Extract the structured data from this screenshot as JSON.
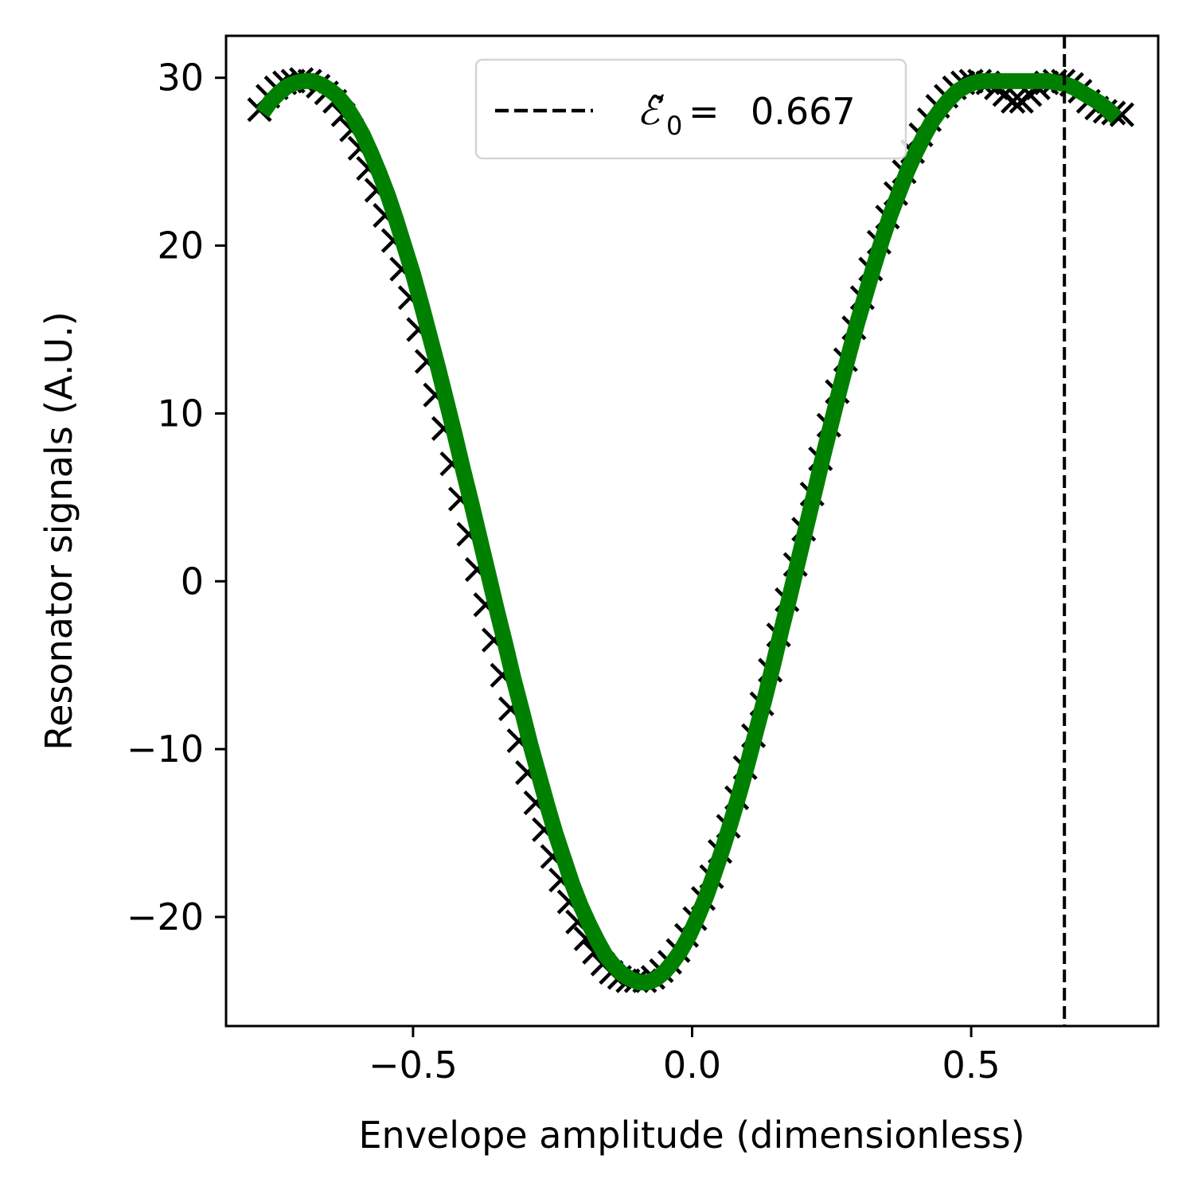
{
  "chart_data": {
    "type": "scatter",
    "xlabel": "Envelope amplitude (dimensionless)",
    "ylabel": "Resonator signals (A.U.)",
    "xlim": [
      -0.835,
      0.835
    ],
    "ylim": [
      -26.5,
      32.5
    ],
    "xticks": [
      -0.5,
      0.0,
      0.5
    ],
    "xtick_labels": [
      "−0.5",
      "0.0",
      "0.5"
    ],
    "yticks": [
      -20,
      -10,
      0,
      10,
      20,
      30
    ],
    "ytick_labels": [
      "−20",
      "−10",
      "0",
      "10",
      "20",
      "30"
    ],
    "grid": false,
    "legend_position": "top-center",
    "vline": {
      "x": 0.667,
      "style": "dashed",
      "color": "#000000"
    },
    "legend": {
      "symbol": "ℰ̃",
      "subscript": "0",
      "equals": "=",
      "value": "0.667"
    },
    "series": [
      {
        "marker": "x",
        "color": "#000000",
        "x": [
          -0.775,
          -0.76,
          -0.745,
          -0.73,
          -0.715,
          -0.7,
          -0.685,
          -0.67,
          -0.655,
          -0.64,
          -0.625,
          -0.61,
          -0.595,
          -0.58,
          -0.565,
          -0.55,
          -0.535,
          -0.52,
          -0.505,
          -0.49,
          -0.475,
          -0.46,
          -0.445,
          -0.43,
          -0.415,
          -0.4,
          -0.385,
          -0.37,
          -0.355,
          -0.34,
          -0.325,
          -0.31,
          -0.295,
          -0.28,
          -0.265,
          -0.25,
          -0.235,
          -0.22,
          -0.205,
          -0.19,
          -0.175,
          -0.16,
          -0.145,
          -0.13,
          -0.115,
          -0.1,
          -0.085,
          -0.07,
          -0.055,
          -0.04,
          -0.025,
          -0.01,
          0.005,
          0.02,
          0.035,
          0.05,
          0.065,
          0.08,
          0.095,
          0.11,
          0.125,
          0.14,
          0.155,
          0.17,
          0.185,
          0.2,
          0.215,
          0.23,
          0.245,
          0.26,
          0.275,
          0.29,
          0.305,
          0.32,
          0.335,
          0.35,
          0.365,
          0.38,
          0.395,
          0.41,
          0.425,
          0.44,
          0.455,
          0.47,
          0.485,
          0.5,
          0.515,
          0.53,
          0.545,
          0.56,
          0.575,
          0.59,
          0.605,
          0.62,
          0.635,
          0.65,
          0.665,
          0.68,
          0.695,
          0.71,
          0.725,
          0.74,
          0.755,
          0.77
        ],
        "y": [
          28.1,
          28.9,
          29.4,
          29.7,
          29.8,
          29.9,
          29.8,
          29.5,
          29.1,
          28.6,
          27.8,
          26.9,
          25.8,
          24.6,
          23.3,
          21.8,
          20.3,
          18.6,
          16.9,
          15.0,
          13.1,
          11.1,
          9.1,
          7.0,
          4.9,
          2.8,
          0.7,
          -1.4,
          -3.5,
          -5.6,
          -7.6,
          -9.5,
          -11.4,
          -13.2,
          -14.8,
          -16.4,
          -17.8,
          -19.1,
          -20.3,
          -21.3,
          -22.1,
          -22.8,
          -23.3,
          -23.6,
          -23.8,
          -23.8,
          -23.8,
          -23.6,
          -23.2,
          -22.7,
          -22.0,
          -21.1,
          -20.1,
          -18.9,
          -17.6,
          -16.1,
          -14.6,
          -12.9,
          -11.1,
          -9.2,
          -7.3,
          -5.3,
          -3.2,
          -1.1,
          1.0,
          3.1,
          5.2,
          7.3,
          9.3,
          11.3,
          13.2,
          15.1,
          16.9,
          18.6,
          20.2,
          21.7,
          23.1,
          24.4,
          25.6,
          26.6,
          27.5,
          28.3,
          28.9,
          29.4,
          29.7,
          29.8,
          29.8,
          29.7,
          29.4,
          29.0,
          28.6,
          28.6,
          29.0,
          29.4,
          29.7,
          29.8,
          29.8,
          29.6,
          29.2,
          28.6,
          28.2,
          28.0,
          27.9,
          27.8
        ]
      },
      {
        "marker": "line",
        "color": "#008000",
        "x": [
          -0.77,
          -0.755,
          -0.74,
          -0.725,
          -0.71,
          -0.695,
          -0.68,
          -0.665,
          -0.65,
          -0.635,
          -0.62,
          -0.605,
          -0.59,
          -0.575,
          -0.56,
          -0.545,
          -0.53,
          -0.515,
          -0.5,
          -0.485,
          -0.47,
          -0.455,
          -0.44,
          -0.425,
          -0.41,
          -0.395,
          -0.38,
          -0.365,
          -0.35,
          -0.335,
          -0.32,
          -0.305,
          -0.29,
          -0.275,
          -0.26,
          -0.245,
          -0.23,
          -0.215,
          -0.2,
          -0.185,
          -0.17,
          -0.155,
          -0.14,
          -0.125,
          -0.11,
          -0.095,
          -0.08,
          -0.065,
          -0.05,
          -0.035,
          -0.02,
          -0.005,
          0.01,
          0.025,
          0.04,
          0.055,
          0.07,
          0.085,
          0.1,
          0.115,
          0.13,
          0.145,
          0.16,
          0.175,
          0.19,
          0.205,
          0.22,
          0.235,
          0.25,
          0.265,
          0.28,
          0.295,
          0.31,
          0.325,
          0.34,
          0.355,
          0.37,
          0.385,
          0.4,
          0.415,
          0.43,
          0.445,
          0.46,
          0.475,
          0.49,
          0.505,
          0.52,
          0.535,
          0.55,
          0.565,
          0.58,
          0.595,
          0.61,
          0.625,
          0.64,
          0.655,
          0.67,
          0.685,
          0.7,
          0.715,
          0.73,
          0.745,
          0.76
        ],
        "y": [
          27.9,
          28.6,
          29.1,
          29.5,
          29.7,
          29.8,
          29.8,
          29.6,
          29.3,
          28.9,
          28.3,
          27.5,
          26.6,
          25.5,
          24.3,
          23.0,
          21.5,
          19.9,
          18.3,
          16.5,
          14.6,
          12.7,
          10.7,
          8.7,
          6.6,
          4.6,
          2.5,
          0.4,
          -1.7,
          -3.7,
          -5.8,
          -7.7,
          -9.7,
          -11.5,
          -13.3,
          -15.0,
          -16.5,
          -18.0,
          -19.3,
          -20.4,
          -21.4,
          -22.3,
          -22.9,
          -23.4,
          -23.7,
          -23.9,
          -23.9,
          -23.7,
          -23.3,
          -22.7,
          -22.0,
          -21.1,
          -20.0,
          -18.8,
          -17.4,
          -15.9,
          -14.3,
          -12.6,
          -10.8,
          -8.9,
          -7.0,
          -5.0,
          -2.9,
          -0.9,
          1.2,
          3.3,
          5.4,
          7.5,
          9.5,
          11.5,
          13.4,
          15.3,
          17.0,
          18.7,
          20.3,
          21.8,
          23.1,
          24.4,
          25.5,
          26.5,
          27.4,
          28.1,
          28.7,
          29.2,
          29.5,
          29.7,
          29.8,
          29.8,
          29.8,
          29.8,
          29.8,
          29.8,
          29.8,
          29.8,
          29.8,
          29.7,
          29.6,
          29.4,
          29.1,
          28.8,
          28.5,
          28.1,
          27.6
        ]
      }
    ]
  }
}
